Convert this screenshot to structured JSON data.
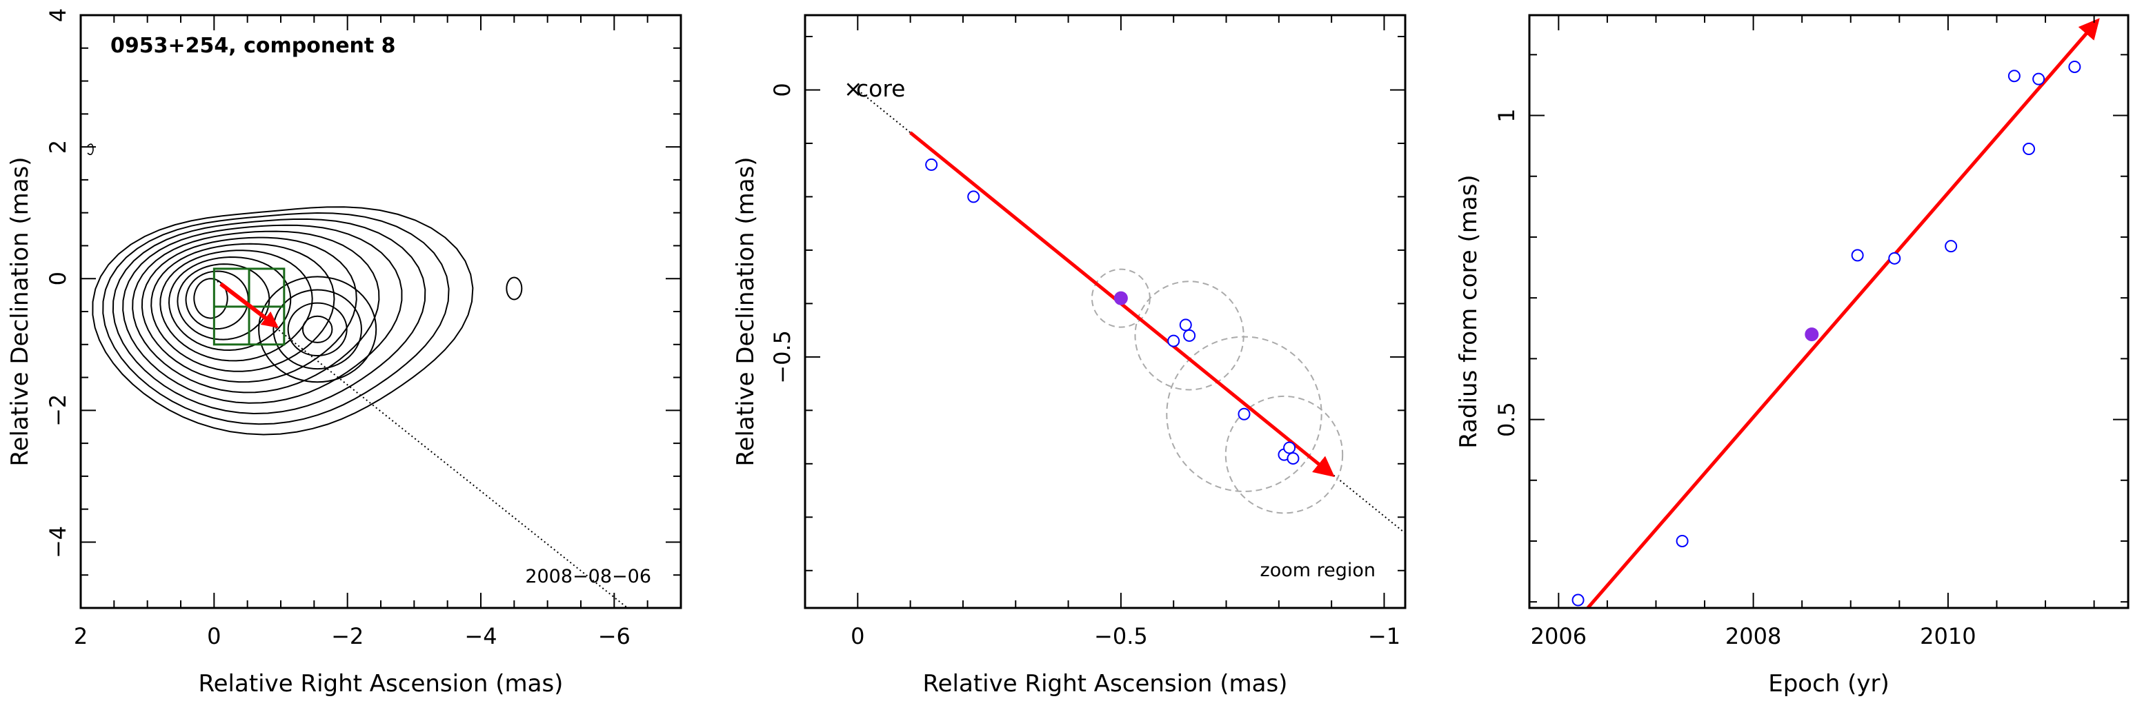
{
  "colors": {
    "trend_arrow": "#ff0000",
    "data_point_outline": "#0000ff",
    "highlight_point": "#8a2be2",
    "contour": "#000000",
    "zoom_box": "#1a6b1a",
    "uncertainty_circle": "#aaaaaa"
  },
  "chart_data": [
    {
      "type": "contour",
      "title": "0953+254, component 8",
      "xlabel": "Relative Right Ascension (mas)",
      "ylabel": "Relative Declination (mas)",
      "xlim": [
        2,
        -7
      ],
      "ylim": [
        -5,
        4
      ],
      "xticks": [
        2,
        0,
        -2,
        -4,
        -6
      ],
      "xtick_labels": [
        "2",
        "0",
        "−2",
        "−4",
        "−6"
      ],
      "yticks": [
        4,
        2,
        0,
        -2,
        -4
      ],
      "ytick_labels": [
        "4",
        "2",
        "0",
        "−2",
        "−4"
      ],
      "date_label": "2008−08−06",
      "secondary_peak": {
        "x": -1.55,
        "y": -0.77
      },
      "outer_blob": {
        "x": -4.5,
        "y": -0.15
      },
      "zoom_box": {
        "x0": 0,
        "x1": -1.05,
        "y0": 0.15,
        "y1": -1.0
      },
      "arrow": {
        "x0": -0.1,
        "y0": -0.08,
        "x1": -0.93,
        "y1": -0.72
      },
      "jet_axis_line": {
        "x0": 0,
        "y0": 0,
        "x1": -6.2,
        "y1": -5.0
      }
    },
    {
      "type": "scatter",
      "xlabel": "Relative Right Ascension (mas)",
      "ylabel": "Relative Declination (mas)",
      "xlim": [
        0.1,
        -1.04
      ],
      "ylim": [
        -0.97,
        0.14
      ],
      "xticks": [
        0,
        -0.5,
        -1
      ],
      "xtick_labels": [
        "0",
        "−0.5",
        "−1"
      ],
      "yticks": [
        0,
        -0.5
      ],
      "ytick_labels": [
        "0",
        "−0.5"
      ],
      "core_label": "core",
      "zoom_label": "zoom region",
      "points": [
        {
          "x": -0.14,
          "y": -0.14
        },
        {
          "x": -0.22,
          "y": -0.2
        },
        {
          "x": -0.6,
          "y": -0.47
        },
        {
          "x": -0.623,
          "y": -0.44
        },
        {
          "x": -0.63,
          "y": -0.46
        },
        {
          "x": -0.734,
          "y": -0.607
        },
        {
          "x": -0.81,
          "y": -0.683
        },
        {
          "x": -0.82,
          "y": -0.67
        },
        {
          "x": -0.827,
          "y": -0.69
        }
      ],
      "highlight_point": {
        "x": -0.5,
        "y": -0.39
      },
      "error_circles": [
        {
          "x": -0.5,
          "y": -0.39,
          "r": 0.055
        },
        {
          "x": -0.63,
          "y": -0.46,
          "r": 0.103
        },
        {
          "x": -0.734,
          "y": -0.607,
          "r": 0.147
        },
        {
          "x": -0.81,
          "y": -0.683,
          "r": 0.111
        }
      ],
      "arrow": {
        "x0": -0.1,
        "y0": -0.08,
        "x1": -0.9,
        "y1": -0.72
      },
      "jet_axis_line": {
        "x0": 0,
        "y0": 0,
        "x1": -1.04,
        "y1": -0.83
      }
    },
    {
      "type": "scatter",
      "xlabel": "Epoch (yr)",
      "ylabel": "Radius from core (mas)",
      "xlim": [
        2005.7,
        2011.85
      ],
      "ylim": [
        0.19,
        1.165
      ],
      "xticks": [
        2006,
        2008,
        2010
      ],
      "xtick_labels": [
        "2006",
        "2008",
        "2010"
      ],
      "yticks": [
        1,
        0.5
      ],
      "ytick_labels": [
        "1",
        "0.5"
      ],
      "points": [
        {
          "x": 2006.2,
          "y": 0.203
        },
        {
          "x": 2007.27,
          "y": 0.3
        },
        {
          "x": 2009.07,
          "y": 0.77
        },
        {
          "x": 2009.45,
          "y": 0.765
        },
        {
          "x": 2010.03,
          "y": 0.785
        },
        {
          "x": 2010.68,
          "y": 1.065
        },
        {
          "x": 2010.83,
          "y": 0.945
        },
        {
          "x": 2010.93,
          "y": 1.06
        },
        {
          "x": 2011.3,
          "y": 1.08
        }
      ],
      "highlight_point": {
        "x": 2008.6,
        "y": 0.64
      },
      "fit_arrow": {
        "x0": 2006.3,
        "y0": 0.19,
        "x1": 2011.53,
        "y1": 1.155
      }
    }
  ]
}
